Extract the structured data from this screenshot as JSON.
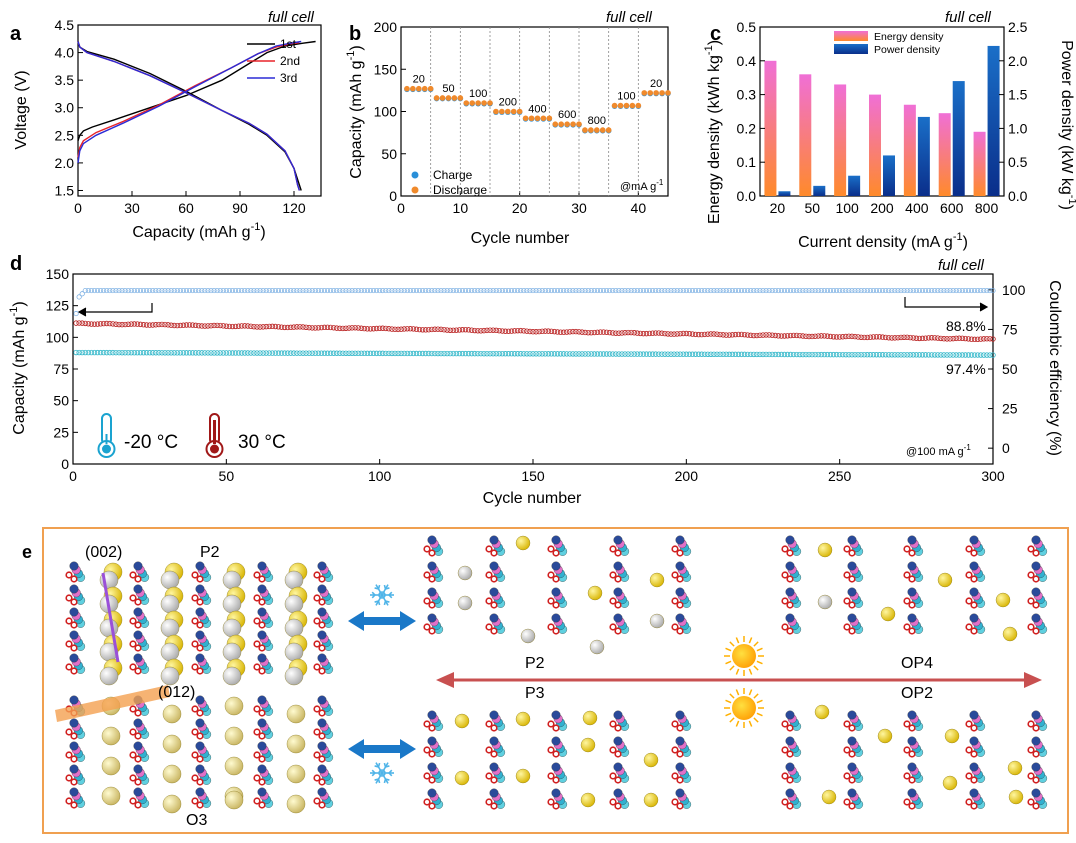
{
  "chart_data": [
    {
      "panel": "a",
      "type": "line",
      "annotation": "full cell",
      "xlabel": "Capacity (mAh g",
      "xlabel_sup": "-1",
      "xlabel_end": ")",
      "ylabel": "Voltage (V)",
      "xlim": [
        0,
        135
      ],
      "ylim": [
        1.4,
        4.5
      ],
      "xticks": [
        0,
        30,
        60,
        90,
        120
      ],
      "yticks": [
        1.5,
        2.0,
        2.5,
        3.0,
        3.5,
        4.0,
        4.5
      ],
      "legend": "top-right",
      "series": [
        {
          "name": "1st",
          "color": "#000000",
          "charge": [
            [
              0,
              2.4
            ],
            [
              1,
              2.5
            ],
            [
              3,
              2.58
            ],
            [
              8,
              2.65
            ],
            [
              20,
              2.78
            ],
            [
              40,
              3.0
            ],
            [
              60,
              3.22
            ],
            [
              80,
              3.5
            ],
            [
              95,
              3.8
            ],
            [
              105,
              4.0
            ],
            [
              115,
              4.12
            ],
            [
              125,
              4.17
            ],
            [
              132,
              4.2
            ]
          ],
          "discharge": [
            [
              0,
              4.2
            ],
            [
              1,
              4.1
            ],
            [
              5,
              4.02
            ],
            [
              20,
              3.88
            ],
            [
              40,
              3.62
            ],
            [
              60,
              3.3
            ],
            [
              80,
              2.95
            ],
            [
              95,
              2.7
            ],
            [
              105,
              2.5
            ],
            [
              115,
              2.2
            ],
            [
              120,
              1.9
            ],
            [
              123,
              1.6
            ],
            [
              124,
              1.5
            ]
          ]
        },
        {
          "name": "2nd",
          "color": "#e8242a",
          "charge": [
            [
              0,
              2.1
            ],
            [
              1,
              2.28
            ],
            [
              3,
              2.4
            ],
            [
              10,
              2.55
            ],
            [
              25,
              2.75
            ],
            [
              45,
              3.05
            ],
            [
              65,
              3.4
            ],
            [
              85,
              3.72
            ],
            [
              100,
              3.98
            ],
            [
              110,
              4.1
            ],
            [
              118,
              4.16
            ],
            [
              123,
              4.18
            ]
          ],
          "discharge": [
            [
              0,
              4.2
            ],
            [
              1,
              4.1
            ],
            [
              5,
              4.0
            ],
            [
              20,
              3.84
            ],
            [
              40,
              3.58
            ],
            [
              60,
              3.27
            ],
            [
              80,
              2.95
            ],
            [
              95,
              2.72
            ],
            [
              105,
              2.52
            ],
            [
              115,
              2.22
            ],
            [
              120,
              1.9
            ],
            [
              122,
              1.6
            ],
            [
              123,
              1.5
            ]
          ]
        },
        {
          "name": "3rd",
          "color": "#2b2bd6",
          "charge": [
            [
              0,
              2.0
            ],
            [
              1,
              2.22
            ],
            [
              3,
              2.35
            ],
            [
              10,
              2.5
            ],
            [
              25,
              2.72
            ],
            [
              45,
              3.03
            ],
            [
              65,
              3.38
            ],
            [
              85,
              3.72
            ],
            [
              100,
              3.98
            ],
            [
              110,
              4.12
            ],
            [
              118,
              4.17
            ],
            [
              124,
              4.2
            ]
          ],
          "discharge": [
            [
              0,
              4.2
            ],
            [
              1,
              4.1
            ],
            [
              5,
              4.0
            ],
            [
              20,
              3.84
            ],
            [
              40,
              3.58
            ],
            [
              60,
              3.27
            ],
            [
              80,
              2.95
            ],
            [
              95,
              2.72
            ],
            [
              105,
              2.52
            ],
            [
              115,
              2.22
            ],
            [
              120,
              1.9
            ],
            [
              122,
              1.6
            ],
            [
              123,
              1.5
            ]
          ]
        }
      ]
    },
    {
      "panel": "b",
      "type": "scatter",
      "annotation": "full cell",
      "xlabel": "Cycle number",
      "ylabel": "Capacity (mAh g",
      "ylabel_sup": "-1",
      "ylabel_end": ")",
      "xlim": [
        0,
        45
      ],
      "ylim": [
        0,
        200
      ],
      "xticks": [
        0,
        10,
        20,
        30,
        40
      ],
      "yticks": [
        0,
        50,
        100,
        150,
        200
      ],
      "unit_note": "@mA g",
      "unit_note_sup": "-1",
      "legend": [
        {
          "name": "Charge",
          "color": "#2a8fd8"
        },
        {
          "name": "Discharge",
          "color": "#f08a2c"
        }
      ],
      "steps": [
        {
          "rate": "20",
          "value": 127
        },
        {
          "rate": "50",
          "value": 116
        },
        {
          "rate": "100",
          "value": 110
        },
        {
          "rate": "200",
          "value": 100
        },
        {
          "rate": "400",
          "value": 92
        },
        {
          "rate": "600",
          "value": 85
        },
        {
          "rate": "800",
          "value": 78
        },
        {
          "rate": "100",
          "value": 107
        },
        {
          "rate": "20",
          "value": 122
        }
      ]
    },
    {
      "panel": "c",
      "type": "bar",
      "annotation": "full cell",
      "xlabel": "Current density (mA g",
      "xlabel_sup": "-1",
      "xlabel_end": ")",
      "ylabel": "Energy density (kWh kg",
      "ylabel_sup": "-1",
      "ylabel_end": ")",
      "y2label": "Power density (kW kg",
      "y2label_sup": "-1",
      "y2label_end": ")",
      "categories": [
        "20",
        "50",
        "100",
        "200",
        "400",
        "600",
        "800"
      ],
      "ylim": [
        0,
        0.5
      ],
      "y2lim": [
        0,
        2.5
      ],
      "yticks": [
        0.0,
        0.1,
        0.2,
        0.3,
        0.4,
        0.5
      ],
      "y2ticks": [
        0.0,
        0.5,
        1.0,
        1.5,
        2.0,
        2.5
      ],
      "series": [
        {
          "name": "Energy density",
          "axis": "left",
          "values": [
            0.4,
            0.36,
            0.33,
            0.3,
            0.27,
            0.245,
            0.19
          ],
          "color_top": "#f06fd6",
          "color_bottom": "#ff8a2a"
        },
        {
          "name": "Power density",
          "axis": "right",
          "values": [
            0.07,
            0.15,
            0.3,
            0.6,
            1.17,
            1.7,
            2.22
          ],
          "color_top": "#1a5fb4",
          "color_bottom": "#0a2e8a"
        }
      ]
    },
    {
      "panel": "d",
      "type": "scatter",
      "annotation": "full cell",
      "xlabel": "Cycle number",
      "ylabel": "Capacity (mAh g",
      "ylabel_sup": "-1",
      "ylabel_end": ")",
      "y2label": "Coulombic efficiency (%)",
      "xlim": [
        0,
        300
      ],
      "ylim": [
        0,
        150
      ],
      "y2lim": [
        -10,
        110
      ],
      "xticks": [
        0,
        50,
        100,
        150,
        200,
        250,
        300
      ],
      "yticks": [
        0,
        25,
        50,
        75,
        100,
        125,
        150
      ],
      "y2ticks": [
        0,
        25,
        50,
        75,
        100
      ],
      "unit_note": "@100 mA g",
      "unit_note_sup": "-1",
      "retention_labels": [
        "88.8%",
        "97.4%"
      ],
      "temperatures": [
        {
          "label": "-20 °C",
          "color": "#1aa3d0"
        },
        {
          "label": "30 °C",
          "color": "#a01818"
        }
      ],
      "series": [
        {
          "name": "30 °C capacity",
          "color": "#b81c1c",
          "start": 111,
          "end": 98.5
        },
        {
          "name": "-20 °C capacity",
          "color": "#2cb5c8",
          "start": 88,
          "end": 86
        },
        {
          "name": "Coulombic efficiency",
          "color": "#6fa8e0",
          "value": 99.5
        }
      ]
    }
  ],
  "schematic": {
    "panel_label": "e",
    "labels": {
      "p002": "(002)",
      "p012": "(012)",
      "p2_left": "P2",
      "o3": "O3",
      "p2_mid": "P2",
      "p3": "P3",
      "op4": "OP4",
      "op2": "OP2"
    },
    "colors": {
      "frame": "#f0a050",
      "arrow": "#1a78c8",
      "sun": "#ffb000",
      "cold": "#4fb4e8",
      "big_arrow": "#c85050"
    }
  },
  "panel_labels": {
    "a": "a",
    "b": "b",
    "c": "c",
    "d": "d"
  }
}
